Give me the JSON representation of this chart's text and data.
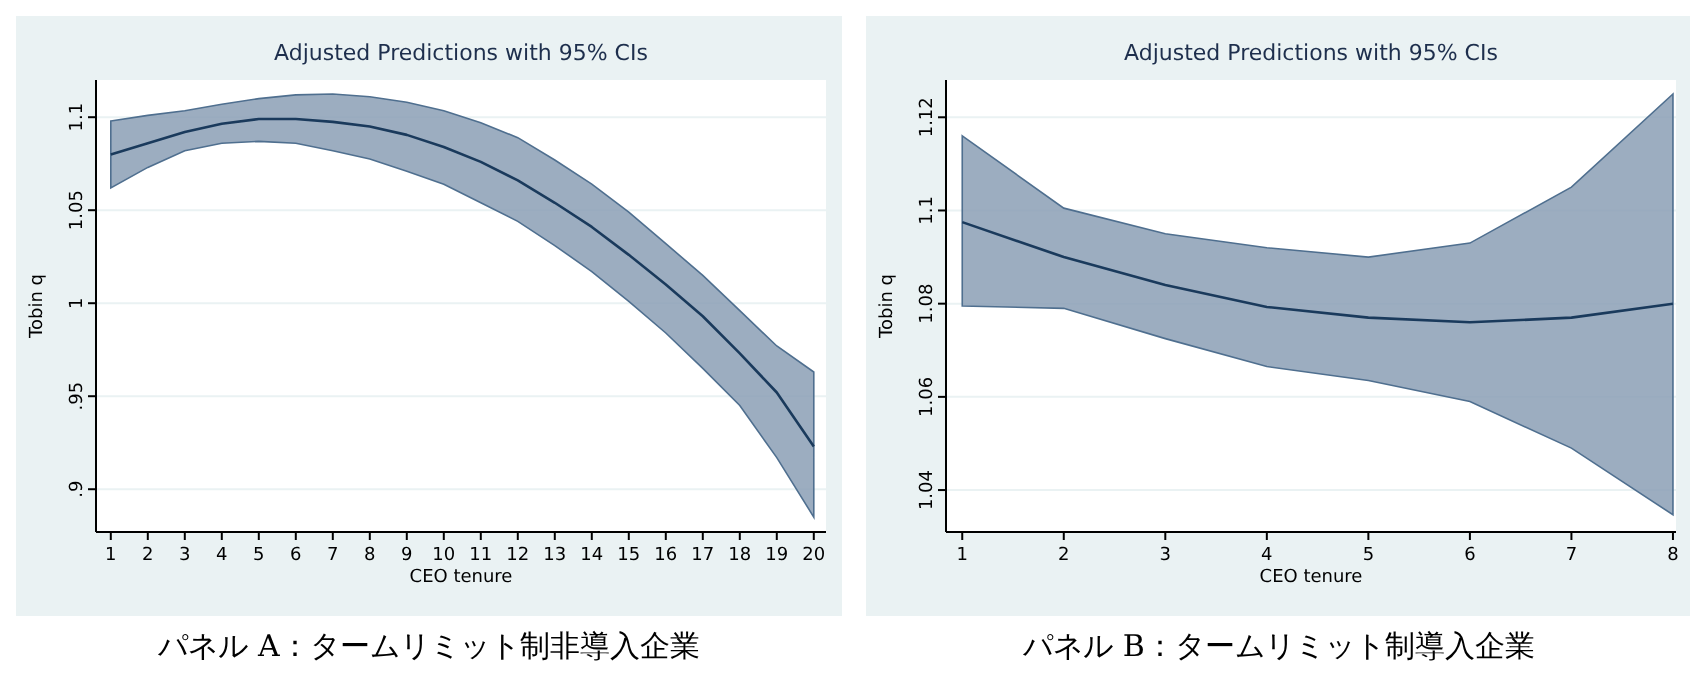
{
  "chart_data": [
    {
      "type": "line",
      "title": "Adjusted Predictions with 95% CIs",
      "xlabel": "CEO tenure",
      "ylabel": "Tobin q",
      "annotations": [
        "パネル A：タームリミット制非導入企業"
      ],
      "x": [
        1,
        2,
        3,
        4,
        5,
        6,
        7,
        8,
        9,
        10,
        11,
        12,
        13,
        14,
        15,
        16,
        17,
        18,
        19,
        20
      ],
      "xlim": [
        0.6,
        20.33
      ],
      "xticks": [
        1,
        2,
        3,
        4,
        5,
        6,
        7,
        8,
        9,
        10,
        11,
        12,
        13,
        14,
        15,
        16,
        17,
        18,
        19,
        20
      ],
      "ylim": [
        0.877,
        1.12
      ],
      "yticks": [
        {
          "value": 0.9,
          "label": ".9"
        },
        {
          "value": 0.95,
          "label": ".95"
        },
        1,
        1.05,
        1.1
      ],
      "grid": "y",
      "series": [
        {
          "color": "#1a3a5c",
          "values": [
            1.08,
            1.086,
            1.092,
            1.0965,
            1.099,
            1.099,
            1.0975,
            1.095,
            1.0905,
            1.084,
            1.076,
            1.066,
            1.054,
            1.041,
            1.026,
            1.01,
            0.993,
            0.973,
            0.952,
            0.923
          ],
          "upper": [
            1.098,
            1.101,
            1.1035,
            1.107,
            1.11,
            1.112,
            1.1125,
            1.111,
            1.108,
            1.1035,
            1.097,
            1.089,
            1.077,
            1.064,
            1.049,
            1.032,
            1.015,
            0.996,
            0.977,
            0.963
          ],
          "lower": [
            1.062,
            1.073,
            1.082,
            1.086,
            1.087,
            1.086,
            1.082,
            1.0775,
            1.071,
            1.064,
            1.054,
            1.044,
            1.031,
            1.017,
            1.001,
            0.984,
            0.965,
            0.945,
            0.917,
            0.885
          ]
        }
      ]
    },
    {
      "type": "line",
      "title": "Adjusted Predictions with 95% CIs",
      "xlabel": "CEO tenure",
      "ylabel": "Tobin q",
      "annotations": [
        "パネル B：タームリミット制導入企業"
      ],
      "x": [
        1,
        2,
        3,
        4,
        5,
        6,
        7,
        8
      ],
      "xlim": [
        0.84,
        8.03
      ],
      "xticks": [
        1,
        2,
        3,
        4,
        5,
        6,
        7,
        8
      ],
      "ylim": [
        1.031,
        1.128
      ],
      "yticks": [
        1.04,
        1.06,
        1.08,
        1.1,
        1.12
      ],
      "grid": "y",
      "series": [
        {
          "color": "#1a3a5c",
          "values": [
            1.0975,
            1.09,
            1.084,
            1.0793,
            1.077,
            1.076,
            1.077,
            1.08
          ],
          "upper": [
            1.116,
            1.1005,
            1.095,
            1.092,
            1.09,
            1.093,
            1.105,
            1.125
          ],
          "lower": [
            1.0795,
            1.079,
            1.0725,
            1.0665,
            1.0635,
            1.059,
            1.049,
            1.0347
          ]
        }
      ]
    }
  ]
}
